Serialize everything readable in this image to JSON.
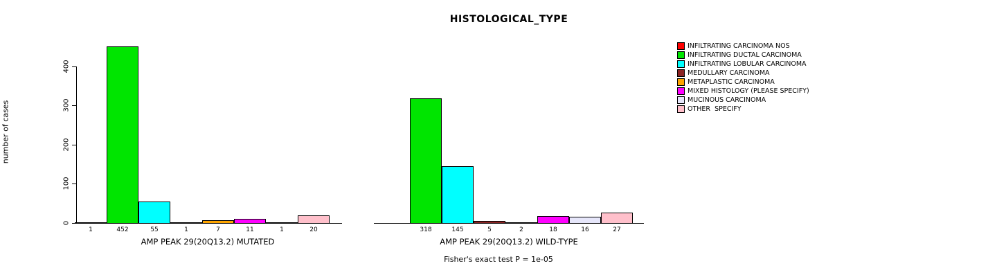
{
  "title": "HISTOLOGICAL_TYPE",
  "ylabel": "number of cases",
  "footnote": "Fisher's exact test P = 1e-05",
  "chart_data": {
    "type": "bar",
    "title": "HISTOLOGICAL_TYPE",
    "xlabel": "",
    "ylabel": "number of cases",
    "ylim": [
      0,
      460
    ],
    "yticks": [
      0,
      100,
      200,
      300,
      400
    ],
    "grid": false,
    "legend_position": "top-right",
    "categories": [
      "INFILTRATING CARCINOMA NOS",
      "INFILTRATING DUCTAL CARCINOMA",
      "INFILTRATING LOBULAR CARCINOMA",
      "MEDULLARY CARCINOMA",
      "METAPLASTIC CARCINOMA",
      "MIXED HISTOLOGY (PLEASE SPECIFY)",
      "MUCINOUS CARCINOMA",
      "OTHER  SPECIFY"
    ],
    "colors": [
      "#FF0000",
      "#00E500",
      "#00FFFF",
      "#8B2323",
      "#FFA500",
      "#FF00FF",
      "#E6E6FA",
      "#FFC0CB"
    ],
    "groups": [
      {
        "label": "AMP PEAK 29(20Q13.2) MUTATED",
        "category_indices": [
          0,
          1,
          2,
          3,
          4,
          5,
          6,
          7
        ],
        "values": [
          1,
          452,
          55,
          1,
          7,
          11,
          1,
          20
        ]
      },
      {
        "label": "AMP PEAK 29(20Q13.2) WILD-TYPE",
        "category_indices": [
          1,
          2,
          3,
          4,
          5,
          6,
          7
        ],
        "values": [
          318,
          145,
          5,
          2,
          18,
          16,
          27
        ]
      }
    ],
    "footnote": "Fisher's exact test P = 1e-05"
  }
}
